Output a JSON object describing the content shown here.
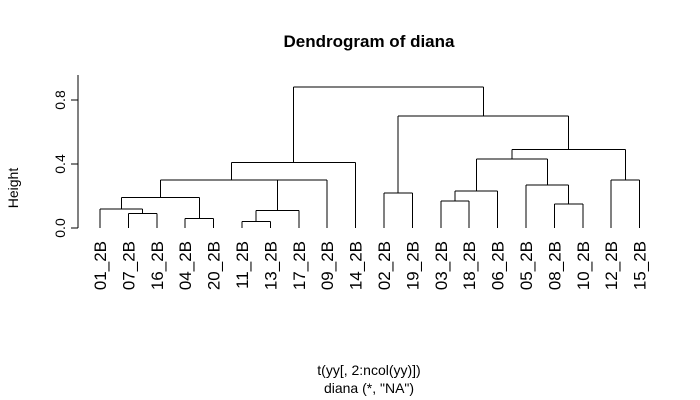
{
  "chart_data": {
    "type": "dendrogram",
    "title": "Dendrogram of diana",
    "xlabel": "t(yy[, 2:ncol(yy)])",
    "sublabel": "diana (*, \"NA\")",
    "ylabel": "Height",
    "ylim": [
      0,
      0.88
    ],
    "yticks": [
      "0.0",
      "0.4",
      "0.8"
    ],
    "leaves": [
      "01_2B",
      "07_2B",
      "16_2B",
      "04_2B",
      "20_2B",
      "11_2B",
      "13_2B",
      "17_2B",
      "09_2B",
      "14_2B",
      "02_2B",
      "19_2B",
      "03_2B",
      "18_2B",
      "06_2B",
      "05_2B",
      "08_2B",
      "10_2B",
      "12_2B",
      "15_2B"
    ],
    "merges": [
      {
        "id": "m1",
        "a": "L11_2B",
        "b": "L13_2B",
        "height": 0.04
      },
      {
        "id": "m2",
        "a": "L07_2B",
        "b": "L16_2B",
        "height": 0.09
      },
      {
        "id": "m3",
        "a": "L04_2B",
        "b": "L20_2B",
        "height": 0.06
      },
      {
        "id": "m4",
        "a": "L01_2B",
        "b": "m2",
        "height": 0.12
      },
      {
        "id": "m5",
        "a": "m1",
        "b": "L17_2B",
        "height": 0.11
      },
      {
        "id": "m6",
        "a": "L08_2B",
        "b": "L10_2B",
        "height": 0.15
      },
      {
        "id": "m7",
        "a": "L03_2B",
        "b": "L18_2B",
        "height": 0.17
      },
      {
        "id": "m8",
        "a": "m4",
        "b": "m3",
        "height": 0.19
      },
      {
        "id": "m9",
        "a": "L02_2B",
        "b": "L19_2B",
        "height": 0.22
      },
      {
        "id": "m10",
        "a": "m7",
        "b": "L06_2B",
        "height": 0.23
      },
      {
        "id": "m11",
        "a": "L05_2B",
        "b": "m6",
        "height": 0.27
      },
      {
        "id": "m12",
        "a": "m5",
        "b": "L09_2B",
        "height": 0.3
      },
      {
        "id": "m13",
        "a": "L12_2B",
        "b": "L15_2B",
        "height": 0.3
      },
      {
        "id": "m14",
        "a": "m8",
        "b": "m12",
        "height": 0.3
      },
      {
        "id": "m15",
        "a": "m14",
        "b": "L14_2B",
        "height": 0.41
      },
      {
        "id": "m16",
        "a": "m10",
        "b": "m11",
        "height": 0.43
      },
      {
        "id": "m17",
        "a": "m16",
        "b": "m13",
        "height": 0.49
      },
      {
        "id": "m18",
        "a": "m9",
        "b": "m17",
        "height": 0.7
      },
      {
        "id": "m19",
        "a": "m15",
        "b": "m18",
        "height": 0.88
      }
    ]
  }
}
